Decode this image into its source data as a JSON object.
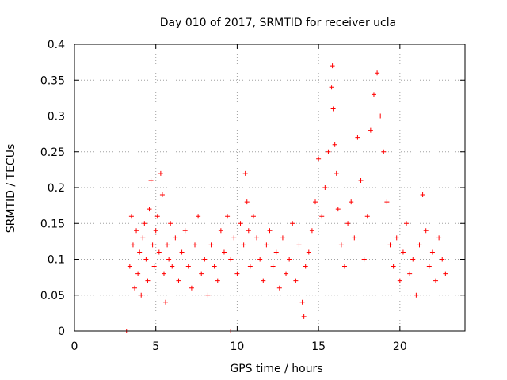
{
  "chart_data": {
    "type": "scatter",
    "title": "Day 010 of 2017, SRMTID for receiver ucla",
    "xlabel": "GPS time / hours",
    "ylabel": "SRMTID / TECUs",
    "xlim": [
      0,
      24
    ],
    "ylim": [
      0,
      0.4
    ],
    "x_ticks": [
      "0",
      "5",
      "10",
      "15",
      "20"
    ],
    "y_ticks": [
      "0",
      "0.05",
      "0.1",
      "0.15",
      "0.2",
      "0.25",
      "0.3",
      "0.35",
      "0.4"
    ],
    "grid": true,
    "marker": "+",
    "color": "#ff0000",
    "points": [
      [
        3.2,
        0.0
      ],
      [
        9.6,
        0.0
      ],
      [
        3.4,
        0.09
      ],
      [
        3.5,
        0.16
      ],
      [
        3.6,
        0.12
      ],
      [
        3.7,
        0.06
      ],
      [
        3.8,
        0.14
      ],
      [
        3.9,
        0.08
      ],
      [
        4.0,
        0.11
      ],
      [
        4.1,
        0.05
      ],
      [
        4.2,
        0.13
      ],
      [
        4.3,
        0.15
      ],
      [
        4.4,
        0.1
      ],
      [
        4.5,
        0.07
      ],
      [
        4.6,
        0.17
      ],
      [
        4.7,
        0.21
      ],
      [
        4.8,
        0.12
      ],
      [
        4.9,
        0.09
      ],
      [
        5.0,
        0.14
      ],
      [
        5.1,
        0.16
      ],
      [
        5.2,
        0.11
      ],
      [
        5.3,
        0.22
      ],
      [
        5.4,
        0.19
      ],
      [
        5.5,
        0.08
      ],
      [
        5.6,
        0.04
      ],
      [
        5.7,
        0.12
      ],
      [
        5.8,
        0.1
      ],
      [
        5.9,
        0.15
      ],
      [
        6.0,
        0.09
      ],
      [
        6.2,
        0.13
      ],
      [
        6.4,
        0.07
      ],
      [
        6.6,
        0.11
      ],
      [
        6.8,
        0.14
      ],
      [
        7.0,
        0.09
      ],
      [
        7.2,
        0.06
      ],
      [
        7.4,
        0.12
      ],
      [
        7.6,
        0.16
      ],
      [
        7.8,
        0.08
      ],
      [
        8.0,
        0.1
      ],
      [
        8.2,
        0.05
      ],
      [
        8.4,
        0.12
      ],
      [
        8.6,
        0.09
      ],
      [
        8.8,
        0.07
      ],
      [
        9.0,
        0.14
      ],
      [
        9.2,
        0.11
      ],
      [
        9.4,
        0.16
      ],
      [
        9.6,
        0.1
      ],
      [
        9.8,
        0.13
      ],
      [
        10.0,
        0.08
      ],
      [
        10.2,
        0.15
      ],
      [
        10.4,
        0.12
      ],
      [
        10.5,
        0.22
      ],
      [
        10.6,
        0.18
      ],
      [
        10.7,
        0.14
      ],
      [
        10.8,
        0.09
      ],
      [
        11.0,
        0.16
      ],
      [
        11.2,
        0.13
      ],
      [
        11.4,
        0.1
      ],
      [
        11.6,
        0.07
      ],
      [
        11.8,
        0.12
      ],
      [
        12.0,
        0.14
      ],
      [
        12.2,
        0.09
      ],
      [
        12.4,
        0.11
      ],
      [
        12.6,
        0.06
      ],
      [
        12.8,
        0.13
      ],
      [
        13.0,
        0.08
      ],
      [
        13.2,
        0.1
      ],
      [
        13.4,
        0.15
      ],
      [
        13.6,
        0.07
      ],
      [
        13.8,
        0.12
      ],
      [
        14.0,
        0.04
      ],
      [
        14.1,
        0.02
      ],
      [
        14.2,
        0.09
      ],
      [
        14.4,
        0.11
      ],
      [
        14.6,
        0.14
      ],
      [
        14.8,
        0.18
      ],
      [
        15.0,
        0.24
      ],
      [
        15.2,
        0.16
      ],
      [
        15.4,
        0.2
      ],
      [
        15.6,
        0.25
      ],
      [
        15.8,
        0.34
      ],
      [
        15.85,
        0.37
      ],
      [
        15.9,
        0.31
      ],
      [
        16.0,
        0.26
      ],
      [
        16.1,
        0.22
      ],
      [
        16.2,
        0.17
      ],
      [
        16.4,
        0.12
      ],
      [
        16.6,
        0.09
      ],
      [
        16.8,
        0.15
      ],
      [
        17.0,
        0.18
      ],
      [
        17.2,
        0.13
      ],
      [
        17.4,
        0.27
      ],
      [
        17.6,
        0.21
      ],
      [
        17.8,
        0.1
      ],
      [
        18.0,
        0.16
      ],
      [
        18.2,
        0.28
      ],
      [
        18.4,
        0.33
      ],
      [
        18.6,
        0.36
      ],
      [
        18.8,
        0.3
      ],
      [
        19.0,
        0.25
      ],
      [
        19.2,
        0.18
      ],
      [
        19.4,
        0.12
      ],
      [
        19.6,
        0.09
      ],
      [
        19.8,
        0.13
      ],
      [
        20.0,
        0.07
      ],
      [
        20.2,
        0.11
      ],
      [
        20.4,
        0.15
      ],
      [
        20.6,
        0.08
      ],
      [
        20.8,
        0.1
      ],
      [
        21.0,
        0.05
      ],
      [
        21.2,
        0.12
      ],
      [
        21.4,
        0.19
      ],
      [
        21.6,
        0.14
      ],
      [
        21.8,
        0.09
      ],
      [
        22.0,
        0.11
      ],
      [
        22.2,
        0.07
      ],
      [
        22.4,
        0.13
      ],
      [
        22.6,
        0.1
      ],
      [
        22.8,
        0.08
      ]
    ]
  }
}
